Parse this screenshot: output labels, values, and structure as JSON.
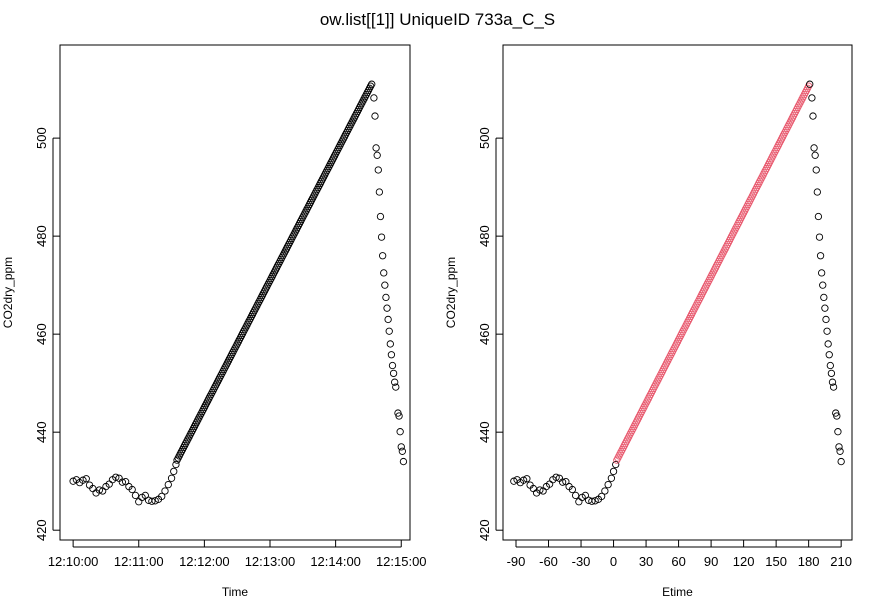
{
  "figure": {
    "title": "ow.list[[1]] UniqueID 733a_C_S"
  },
  "chart_data": [
    {
      "type": "scatter",
      "xlabel": "Time",
      "ylabel": "CO2dry_ppm",
      "x_ticks": [
        "12:10:00",
        "12:11:00",
        "12:12:00",
        "12:13:00",
        "12:14:00",
        "12:15:00"
      ],
      "x_tick_values": [
        0,
        60,
        120,
        180,
        240,
        300
      ],
      "xlim": [
        -12,
        308
      ],
      "y_ticks": [
        "420",
        "440",
        "460",
        "480",
        "500"
      ],
      "y_tick_values": [
        420,
        440,
        460,
        480,
        500
      ],
      "ylim": [
        418,
        519
      ],
      "x_unit": "seconds after 12:10:00",
      "point_color": "#000000",
      "series": [
        {
          "marker": "open-circle",
          "x_start": 0,
          "x_end": 270,
          "points": "see curve"
        }
      ]
    },
    {
      "type": "scatter",
      "xlabel": "Etime",
      "ylabel": "CO2dry_ppm",
      "x_ticks": [
        "-90",
        "-60",
        "-30",
        "0",
        "30",
        "60",
        "90",
        "120",
        "150",
        "180",
        "210"
      ],
      "x_tick_values": [
        -90,
        -60,
        -30,
        0,
        30,
        60,
        90,
        120,
        150,
        180,
        210
      ],
      "xlim": [
        -102,
        220
      ],
      "y_ticks": [
        "420",
        "440",
        "460",
        "480",
        "500"
      ],
      "y_tick_values": [
        420,
        440,
        460,
        480,
        500
      ],
      "ylim": [
        418,
        519
      ],
      "highlight_color": "#e8596e",
      "point_color": "#000000",
      "highlight_range": [
        0,
        180
      ]
    }
  ],
  "curve": {
    "pre_points": [
      [
        -92,
        430.0
      ],
      [
        -89,
        430.3
      ],
      [
        -86,
        429.7
      ],
      [
        -83,
        430.2
      ],
      [
        -80,
        430.5
      ],
      [
        -77,
        429.2
      ],
      [
        -74,
        428.5
      ],
      [
        -71,
        427.6
      ],
      [
        -68,
        428.2
      ],
      [
        -65,
        428.0
      ],
      [
        -62,
        428.9
      ],
      [
        -59,
        429.4
      ],
      [
        -56,
        430.3
      ],
      [
        -53,
        430.8
      ],
      [
        -50,
        430.6
      ],
      [
        -47,
        429.8
      ],
      [
        -44,
        429.9
      ],
      [
        -41,
        428.9
      ],
      [
        -38,
        428.3
      ],
      [
        -35,
        427.1
      ],
      [
        -32,
        425.8
      ],
      [
        -29,
        426.7
      ],
      [
        -26,
        427.1
      ],
      [
        -23,
        426.1
      ],
      [
        -20,
        425.9
      ],
      [
        -17,
        426.0
      ],
      [
        -14,
        426.3
      ],
      [
        -11,
        426.9
      ],
      [
        -8,
        428.0
      ],
      [
        -5,
        429.3
      ],
      [
        -2,
        430.6
      ],
      [
        0,
        432.0
      ],
      [
        2,
        433.4
      ]
    ],
    "rise_start": [
      0,
      433.0
    ],
    "rise_end": [
      180,
      510.6
    ],
    "rise_step": 1.6,
    "post_points": [
      [
        181,
        511.0
      ],
      [
        183,
        508.2
      ],
      [
        184,
        504.5
      ],
      [
        185,
        498.0
      ],
      [
        186,
        496.5
      ],
      [
        187,
        493.5
      ],
      [
        188,
        489.0
      ],
      [
        189,
        484.0
      ],
      [
        190,
        479.8
      ],
      [
        191,
        476.0
      ],
      [
        192,
        472.5
      ],
      [
        193,
        470.0
      ],
      [
        194,
        467.5
      ],
      [
        195,
        465.3
      ],
      [
        196,
        463.0
      ],
      [
        197,
        460.6
      ],
      [
        198,
        458.0
      ],
      [
        199,
        455.8
      ],
      [
        200,
        453.6
      ],
      [
        201,
        452.0
      ],
      [
        202,
        450.2
      ],
      [
        203,
        449.2
      ],
      [
        205,
        443.9
      ],
      [
        206,
        443.3
      ],
      [
        207,
        440.1
      ],
      [
        208,
        437.0
      ],
      [
        209,
        436.1
      ],
      [
        210,
        434.0
      ]
    ],
    "time_offset": 92
  }
}
